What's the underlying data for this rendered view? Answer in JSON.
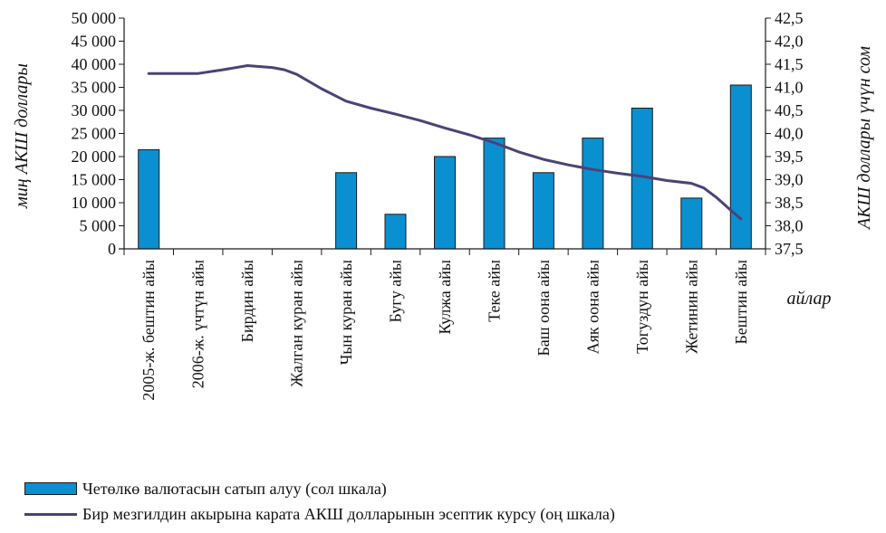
{
  "chart_data": {
    "type": "bar",
    "categories": [
      "2005-ж. бештин айы",
      "2006-ж. үчтүн айы",
      "Бирдин айы",
      "Жалган куран айы",
      "Чын куран айы",
      "Бугу айы",
      "Кулжа айы",
      "Теке айы",
      "Баш оона айы",
      "Аяк оона айы",
      "Тогуздун айы",
      "Жетинин айы",
      "Бештин айы"
    ],
    "series": [
      {
        "name": "Четөлкө валютасын сатып алуу (сол шкала)",
        "type": "bar",
        "axis": "left",
        "values": [
          21500,
          0,
          0,
          0,
          16500,
          7500,
          20000,
          24000,
          16500,
          24000,
          30500,
          11000,
          35500
        ]
      },
      {
        "name": "Бир мезгилдин акырына карата АКШ долларынын эсептик курсу (оң шкала)",
        "type": "line",
        "axis": "right",
        "x": [
          0,
          1,
          1.5,
          2,
          2.5,
          2.75,
          3,
          3.5,
          4,
          4.5,
          5,
          5.5,
          6,
          6.5,
          7,
          7.5,
          8,
          8.5,
          9,
          9.5,
          10,
          10.5,
          11,
          11.25,
          11.5,
          11.75,
          12
        ],
        "values": [
          41.3,
          41.3,
          41.38,
          41.47,
          41.43,
          41.38,
          41.28,
          40.97,
          40.7,
          40.55,
          40.42,
          40.28,
          40.12,
          39.97,
          39.8,
          39.6,
          39.44,
          39.32,
          39.22,
          39.14,
          39.07,
          38.98,
          38.92,
          38.82,
          38.62,
          38.38,
          38.15
        ]
      }
    ],
    "y_left": {
      "label": "миң АКШ доллары",
      "ylim": [
        0,
        50000
      ],
      "ticks": [
        "0",
        "5 000",
        "10 000",
        "15 000",
        "20 000",
        "25 000",
        "30 000",
        "35 000",
        "40 000",
        "45 000",
        "50 000"
      ]
    },
    "y_right": {
      "label": "АКШ доллары үчүн сом",
      "ylim": [
        37.5,
        42.5
      ],
      "ticks": [
        "37,5",
        "38,0",
        "38,5",
        "39,0",
        "39,5",
        "40,0",
        "40,5",
        "41,0",
        "41,5",
        "42,0",
        "42,5"
      ]
    },
    "xlabel": "айлар",
    "grid": false,
    "legend_placement": "bottom-left",
    "colors": {
      "bar": "#0a8fd1",
      "bar_edge": "#1a1a1a",
      "line": "#4a4377"
    }
  }
}
